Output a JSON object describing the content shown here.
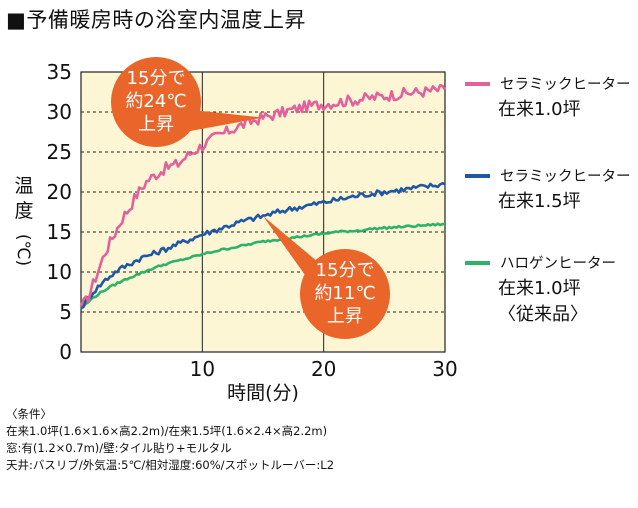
{
  "title": "■予備暖房時の浴室内温度上昇",
  "chart_data": {
    "type": "line",
    "xlabel": "時間(分)",
    "ylabel": [
      "温",
      "度",
      "(℃)"
    ],
    "xlim": [
      0,
      30
    ],
    "ylim": [
      0,
      35
    ],
    "x_ticks": [
      10,
      20,
      30
    ],
    "y_ticks": [
      0,
      5,
      10,
      15,
      20,
      25,
      30,
      35
    ],
    "grid": true,
    "series": [
      {
        "name_lines": [
          "セラミックヒーター",
          "在来1.0坪"
        ],
        "color": "#e2619d",
        "x": [
          0,
          0.5,
          1,
          1.5,
          2,
          2.5,
          3,
          3.5,
          4,
          4.5,
          5,
          5.5,
          6,
          6.5,
          7,
          7.5,
          8,
          8.5,
          9,
          9.5,
          10,
          11,
          12,
          13,
          14,
          15,
          16,
          17,
          18,
          19,
          20,
          21,
          22,
          23,
          24,
          25,
          26,
          27,
          28,
          29,
          30
        ],
        "y": [
          5.7,
          6.5,
          8.5,
          10.5,
          12.5,
          14,
          15.5,
          17,
          18,
          19.5,
          20.5,
          21.5,
          22,
          22.5,
          23,
          23.3,
          23.5,
          24.2,
          24.8,
          25.3,
          25.8,
          26.8,
          27.5,
          28.2,
          28.8,
          29.3,
          29.7,
          30.1,
          30.5,
          30.8,
          31,
          31.2,
          31.4,
          31.6,
          31.8,
          32,
          32.2,
          32.4,
          32.5,
          32.7,
          32.8
        ]
      },
      {
        "name_lines": [
          "セラミックヒーター",
          "在来1.5坪"
        ],
        "color": "#1f56a6",
        "x": [
          0,
          1,
          2,
          3,
          4,
          5,
          6,
          7,
          8,
          9,
          10,
          11,
          12,
          13,
          14,
          15,
          16,
          17,
          18,
          19,
          20,
          21,
          22,
          23,
          24,
          25,
          26,
          27,
          28,
          29,
          30
        ],
        "y": [
          5.5,
          7.5,
          9,
          10.2,
          11,
          11.8,
          12.3,
          12.9,
          13.5,
          14.1,
          14.7,
          15.2,
          15.7,
          16.2,
          16.6,
          17,
          17.4,
          17.8,
          18.1,
          18.4,
          18.7,
          19,
          19.3,
          19.6,
          19.8,
          20,
          20.2,
          20.4,
          20.6,
          20.8,
          21
        ]
      },
      {
        "name_lines": [
          "ハロゲンヒーター",
          "在来1.0坪",
          "〈従来品〉"
        ],
        "color": "#2db26c",
        "x": [
          0,
          1,
          2,
          3,
          4,
          5,
          6,
          7,
          8,
          9,
          10,
          11,
          12,
          13,
          14,
          15,
          16,
          17,
          18,
          19,
          20,
          21,
          22,
          23,
          24,
          25,
          26,
          27,
          28,
          29,
          30
        ],
        "y": [
          5.4,
          6.8,
          7.8,
          8.6,
          9.3,
          9.9,
          10.5,
          11,
          11.4,
          11.8,
          12.2,
          12.6,
          12.9,
          13.2,
          13.5,
          13.8,
          14,
          14.2,
          14.4,
          14.6,
          14.8,
          15,
          15.1,
          15.2,
          15.4,
          15.5,
          15.6,
          15.7,
          15.8,
          15.9,
          16
        ]
      }
    ],
    "annotations": [
      {
        "lines": [
          "15分で",
          "約24℃",
          "上昇"
        ],
        "color": "#e9652a"
      },
      {
        "lines": [
          "15分で",
          "約11℃",
          "上昇"
        ],
        "color": "#e9652a"
      }
    ]
  },
  "conditions": [
    "〈条件〉",
    "在来1.0坪(1.6×1.6×高2.2m)/在来1.5坪(1.6×2.4×高2.2m)",
    "窓:有(1.2×0.7m)/壁:タイル貼り+モルタル",
    "天井:バスリブ/外気温:5℃/相対湿度:60%/スポットルーバー:L2"
  ]
}
